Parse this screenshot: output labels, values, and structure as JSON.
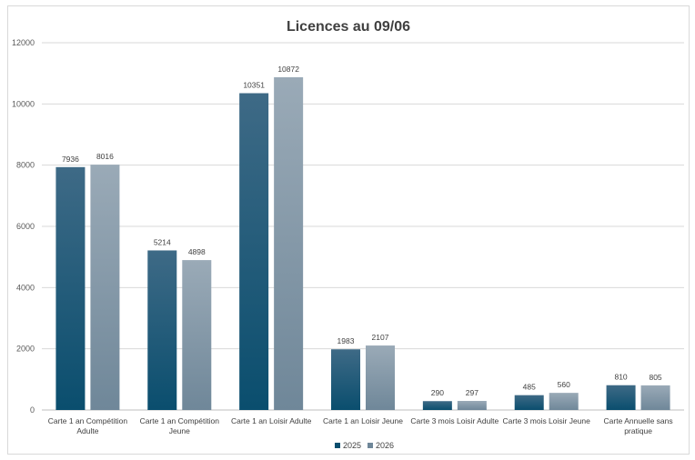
{
  "chart_data": {
    "type": "bar",
    "title": "Licences au 09/06",
    "xlabel": "",
    "ylabel": "",
    "ylim": [
      0,
      12000
    ],
    "yticks": [
      0,
      2000,
      4000,
      6000,
      8000,
      10000,
      12000
    ],
    "grid": true,
    "legend_position": "bottom",
    "categories": [
      [
        "Carte 1 an Compétition",
        "Adulte"
      ],
      [
        "Carte 1 an Compétition",
        "Jeune"
      ],
      [
        "Carte 1 an Loisir Adulte"
      ],
      [
        "Carte 1 an Loisir Jeune"
      ],
      [
        "Carte 3 mois Loisir Adulte"
      ],
      [
        "Carte 3 mois Loisir Jeune"
      ],
      [
        "Carte Annuelle sans",
        "pratique"
      ]
    ],
    "series": [
      {
        "name": "2025",
        "values": [
          7936,
          5214,
          10351,
          1983,
          290,
          485,
          810
        ],
        "color_top": "#3e6a86",
        "color_bottom": "#0a4e6e"
      },
      {
        "name": "2026",
        "values": [
          8016,
          4898,
          10872,
          2107,
          297,
          560,
          805
        ],
        "color_top": "#9aaab7",
        "color_bottom": "#6f8799"
      }
    ]
  }
}
